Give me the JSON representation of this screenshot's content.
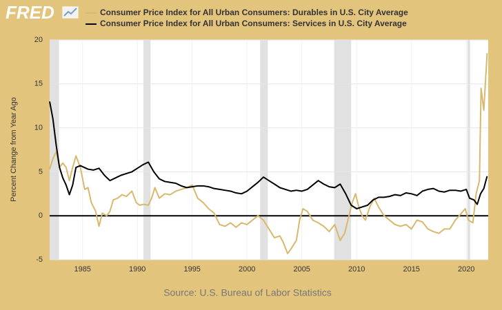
{
  "logo": "FRED",
  "chart_data": {
    "type": "line",
    "ylabel": "Percent Change from Year Ago",
    "source": "Source: U.S. Bureau of Labor Statistics",
    "xlim": [
      1982,
      2022
    ],
    "ylim": [
      -5,
      20
    ],
    "xticks": [
      1985,
      1990,
      1995,
      2000,
      2005,
      2010,
      2015,
      2020
    ],
    "yticks": [
      -5,
      0,
      5,
      10,
      15,
      20
    ],
    "grid": true,
    "recessions": [
      [
        1982,
        1982.85
      ],
      [
        1990.55,
        1991.2
      ],
      [
        2001.2,
        2001.9
      ],
      [
        2007.95,
        2009.5
      ],
      [
        2020.1,
        2020.35
      ]
    ],
    "series": [
      {
        "name": "Consumer Price Index for All Urban Consumers: Durables in U.S. City Average",
        "color": "#d8b86c",
        "x": [
          1982.0,
          1982.3,
          1982.6,
          1982.9,
          1983.2,
          1983.5,
          1983.8,
          1984.1,
          1984.4,
          1984.8,
          1985.2,
          1985.5,
          1985.8,
          1986.2,
          1986.5,
          1986.8,
          1987.2,
          1987.5,
          1987.8,
          1988.2,
          1988.6,
          1989,
          1989.5,
          1989.9,
          1990.2,
          1990.6,
          1991,
          1991.3,
          1991.6,
          1992,
          1992.5,
          1993,
          1993.5,
          1994,
          1994.5,
          1995,
          1995.5,
          1996,
          1996.5,
          1997,
          1997.5,
          1998,
          1998.5,
          1999,
          1999.5,
          2000,
          2000.5,
          2001,
          2001.5,
          2002,
          2002.5,
          2003,
          2003.3,
          2003.7,
          2004,
          2004.5,
          2004.8,
          2005.1,
          2005.5,
          2006,
          2006.5,
          2007,
          2007.5,
          2008,
          2008.5,
          2008.9,
          2009.3,
          2009.6,
          2009.9,
          2010.2,
          2010.5,
          2010.8,
          2011.2,
          2011.6,
          2012,
          2012.5,
          2013,
          2013.5,
          2014,
          2014.5,
          2015,
          2015.5,
          2016,
          2016.5,
          2017,
          2017.5,
          2018,
          2018.5,
          2019,
          2019.5,
          2019.9,
          2020.2,
          2020.6,
          2020.9,
          2021.2,
          2021.35,
          2021.6,
          2021.9
        ],
        "values": [
          5.3,
          6.5,
          7.3,
          5.5,
          6.0,
          5.5,
          4.0,
          5.5,
          6.8,
          5.5,
          3.0,
          3.2,
          1.5,
          0.5,
          -1.2,
          0.3,
          0.0,
          0.5,
          1.8,
          2.0,
          2.4,
          2.2,
          2.8,
          1.5,
          1.2,
          1.3,
          1.2,
          2.0,
          3.2,
          2.0,
          2.5,
          2.4,
          2.8,
          3.0,
          3.2,
          3.5,
          2.0,
          1.5,
          0.8,
          0.3,
          -1.0,
          -1.2,
          -0.8,
          -1.3,
          -0.8,
          -1.0,
          -0.5,
          0.0,
          -0.5,
          -1.5,
          -2.5,
          -2.3,
          -3.0,
          -4.3,
          -3.8,
          -2.8,
          -0.5,
          0.8,
          0.5,
          -0.5,
          -0.8,
          -1.2,
          -1.8,
          -1.0,
          -2.8,
          -2.0,
          0.0,
          1.5,
          2.5,
          1.0,
          0.0,
          -0.5,
          1.0,
          2.0,
          1.0,
          0.0,
          -0.5,
          -1.0,
          -1.2,
          -1.0,
          -1.5,
          -0.5,
          -0.7,
          -1.5,
          -1.8,
          -2.0,
          -1.5,
          -1.5,
          -0.5,
          0.2,
          0.8,
          -0.5,
          -0.8,
          2.5,
          4.0,
          14.5,
          12.0,
          18.5
        ]
      },
      {
        "name": "Consumer Price Index for All Urban Consumers: Services in U.S. City Average",
        "color": "#000000",
        "x": [
          1982.0,
          1982.3,
          1982.6,
          1982.9,
          1983.2,
          1983.5,
          1983.8,
          1984.1,
          1984.4,
          1984.8,
          1985.5,
          1986,
          1986.5,
          1987,
          1987.5,
          1988,
          1988.5,
          1989,
          1989.5,
          1990,
          1990.5,
          1991,
          1991.5,
          1992,
          1992.5,
          1993,
          1993.5,
          1994,
          1994.5,
          1995,
          1995.5,
          1996,
          1996.5,
          1997,
          1997.5,
          1998,
          1998.5,
          1999,
          1999.5,
          2000,
          2000.5,
          2001,
          2001.5,
          2002,
          2002.5,
          2003,
          2003.5,
          2004,
          2004.5,
          2005,
          2005.5,
          2006,
          2006.5,
          2007,
          2007.5,
          2008,
          2008.5,
          2009,
          2009.5,
          2010,
          2010.5,
          2011,
          2011.5,
          2012,
          2012.5,
          2013,
          2013.5,
          2014,
          2014.5,
          2015,
          2015.5,
          2016,
          2016.5,
          2017,
          2017.5,
          2018,
          2018.5,
          2019,
          2019.5,
          2020,
          2020.3,
          2020.7,
          2021,
          2021.3,
          2021.6,
          2021.9
        ],
        "values": [
          13,
          11,
          8,
          5.5,
          4.3,
          3.5,
          2.4,
          3.5,
          5.5,
          5.7,
          5.3,
          5.2,
          5.4,
          4.6,
          4.0,
          4.3,
          4.6,
          4.8,
          5.0,
          5.4,
          5.8,
          6.1,
          5.0,
          4.2,
          3.9,
          3.8,
          3.7,
          3.4,
          3.2,
          3.3,
          3.4,
          3.4,
          3.3,
          3.1,
          3.0,
          2.9,
          2.8,
          2.6,
          2.5,
          2.8,
          3.3,
          3.8,
          4.4,
          4.0,
          3.6,
          3.2,
          3.0,
          2.8,
          2.9,
          2.8,
          3.0,
          3.5,
          4.0,
          3.6,
          3.3,
          3.2,
          3.6,
          2.5,
          1.2,
          0.8,
          1.0,
          1.2,
          1.8,
          2.1,
          2.1,
          2.2,
          2.4,
          2.3,
          2.6,
          2.5,
          2.3,
          2.8,
          3.0,
          3.1,
          2.8,
          2.7,
          2.9,
          2.9,
          2.8,
          3.0,
          2.0,
          1.8,
          1.3,
          2.5,
          3.1,
          4.5
        ]
      }
    ]
  }
}
